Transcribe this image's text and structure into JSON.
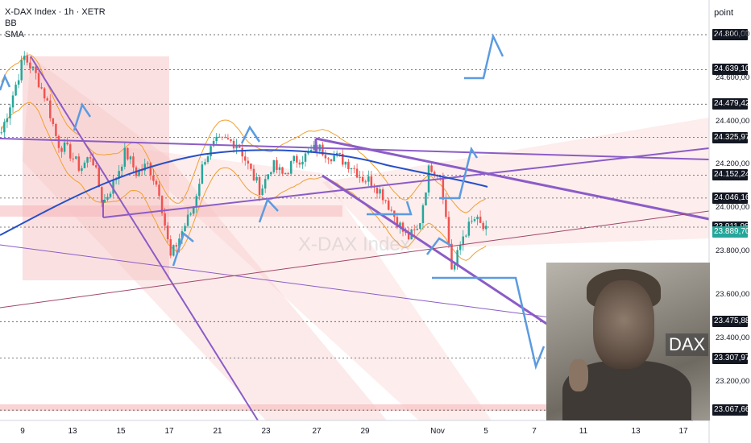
{
  "header": {
    "title": "X-DAX Index · 1h · XETR",
    "indicators": [
      "BB",
      "SMA"
    ],
    "price_axis_unit": "point"
  },
  "watermark": "X-DAX Index",
  "image_badge": "DAX",
  "colors": {
    "candle_up": "#26a69a",
    "candle_down": "#ef5350",
    "bollinger": "#f0a030",
    "sma": "#2650c8",
    "channel_line": "#8b5cc7",
    "arrow": "#5b9be0",
    "zone_fill": "#f7c2c4",
    "grid": "#555555",
    "last_price_tag": "#26a69a"
  },
  "chart_data": {
    "type": "candlestick",
    "symbol": "X-DAX Index",
    "timeframe": "1h",
    "x_tick_labels": [
      "9",
      "13",
      "15",
      "17",
      "21",
      "23",
      "27",
      "29",
      "Nov",
      "5",
      "7",
      "11",
      "13",
      "17"
    ],
    "y_tick_labels": [
      "24.800,00",
      "24.600,00",
      "24.400,00",
      "24.200,00",
      "24.000,00",
      "23.800,00",
      "23.600,00",
      "23.400,00",
      "23.200,00"
    ],
    "y_range": [
      23020,
      24960
    ],
    "horizontal_levels": [
      24800.0,
      24639.1,
      24479.42,
      24325.97,
      24152.24,
      24046.16,
      23911.98,
      23475.88,
      23307.97,
      23067.66
    ],
    "last_price": "23.889,70",
    "close_path": [
      24350,
      24520,
      24700,
      24620,
      24500,
      24300,
      24260,
      24180,
      24250,
      24020,
      24120,
      24260,
      24160,
      24200,
      24080,
      23770,
      23890,
      24000,
      24230,
      24300,
      24310,
      24300,
      24180,
      24080,
      24200,
      24150,
      24220,
      24240,
      24280,
      24250,
      24230,
      24200,
      24140,
      24120,
      24050,
      23950,
      23860,
      23900,
      24200,
      24150,
      23700,
      23880,
      23950,
      23890
    ],
    "legend_position": "top-left",
    "grid": "horizontal dotted"
  }
}
